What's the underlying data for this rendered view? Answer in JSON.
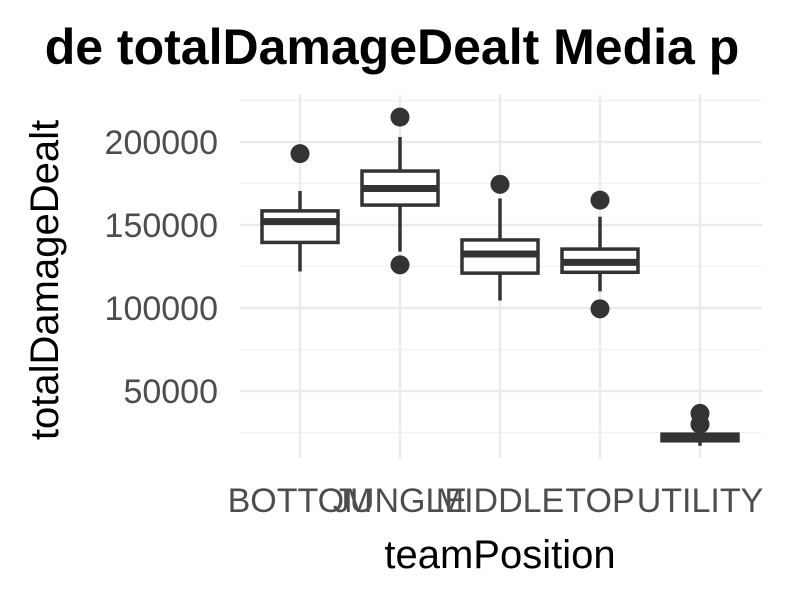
{
  "chart_data": {
    "type": "boxplot",
    "title": "de totalDamageDealt Media p",
    "xlabel": "teamPosition",
    "ylabel": "totalDamageDealt",
    "categories": [
      "BOTTOM",
      "JUNGLE",
      "MIDDLE",
      "TOP",
      "UTILITY"
    ],
    "y_ticks": [
      50000,
      100000,
      150000,
      200000
    ],
    "y_tick_labels": [
      "50000",
      "100000",
      "150000",
      "200000"
    ],
    "ylim": [
      15000,
      222000
    ],
    "grid": true,
    "boxes": [
      {
        "category": "BOTTOM",
        "min": 122000,
        "q1": 139500,
        "median": 152000,
        "q3": 158500,
        "max": 170500,
        "outliers": [
          193000
        ]
      },
      {
        "category": "JUNGLE",
        "min": 134000,
        "q1": 162000,
        "median": 172000,
        "q3": 182500,
        "max": 203000,
        "outliers": [
          215000,
          126000
        ]
      },
      {
        "category": "MIDDLE",
        "min": 104500,
        "q1": 121000,
        "median": 132500,
        "q3": 141000,
        "max": 166000,
        "outliers": [
          174500
        ]
      },
      {
        "category": "TOP",
        "min": 110000,
        "q1": 121500,
        "median": 127500,
        "q3": 135500,
        "max": 155000,
        "outliers": [
          165000,
          99500
        ]
      },
      {
        "category": "UTILITY",
        "min": 17000,
        "q1": 20000,
        "median": 21500,
        "q3": 24000,
        "max": 25500,
        "outliers": [
          36500,
          30000
        ]
      }
    ],
    "colors": {
      "box_stroke": "#333333",
      "box_fill": "#ffffff",
      "tick_text": "#4d4d4d"
    }
  }
}
